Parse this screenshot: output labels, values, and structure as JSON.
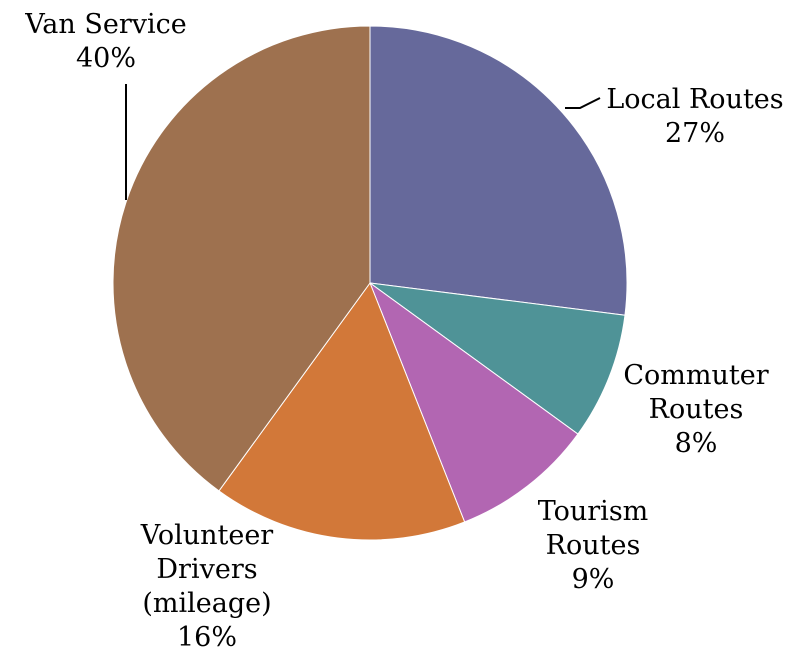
{
  "chart_data": {
    "type": "pie",
    "title": "",
    "start_angle_deg": 0,
    "direction": "clockwise",
    "legend": "none",
    "slices": [
      {
        "label_lines": [
          "Local Routes"
        ],
        "value": 27,
        "value_label": "27%",
        "color": "#66699b"
      },
      {
        "label_lines": [
          "Commuter",
          "Routes"
        ],
        "value": 8,
        "value_label": "8%",
        "color": "#4f9397"
      },
      {
        "label_lines": [
          "Tourism",
          "Routes"
        ],
        "value": 9,
        "value_label": "9%",
        "color": "#b266b2"
      },
      {
        "label_lines": [
          "Volunteer",
          "Drivers",
          "(mileage)"
        ],
        "value": 16,
        "value_label": "16%",
        "color": "#d27839"
      },
      {
        "label_lines": [
          "Van Service"
        ],
        "value": 40,
        "value_label": "40%",
        "color": "#9e714f"
      }
    ]
  }
}
